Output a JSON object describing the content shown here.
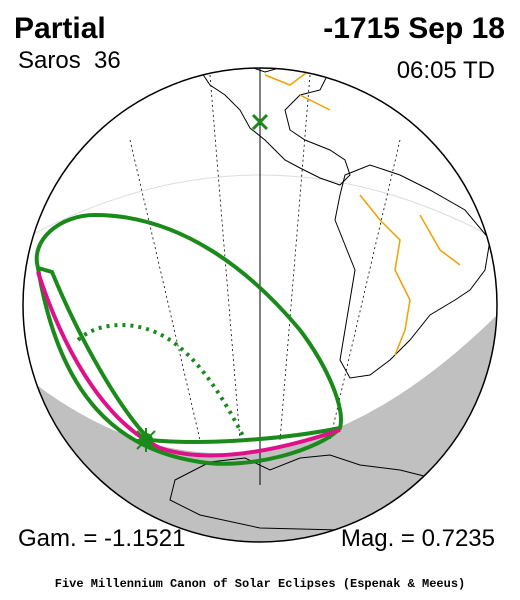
{
  "header": {
    "title": "Partial",
    "date": "-1715 Sep 18",
    "saros": "Saros  36",
    "time": "06:05 TD"
  },
  "footer": {
    "gamma": "Gam. = -1.1521",
    "magnitude": "Mag. = 0.7235",
    "credit": "Five Millennium Canon of Solar Eclipses (Espenak & Meeus)"
  }
}
